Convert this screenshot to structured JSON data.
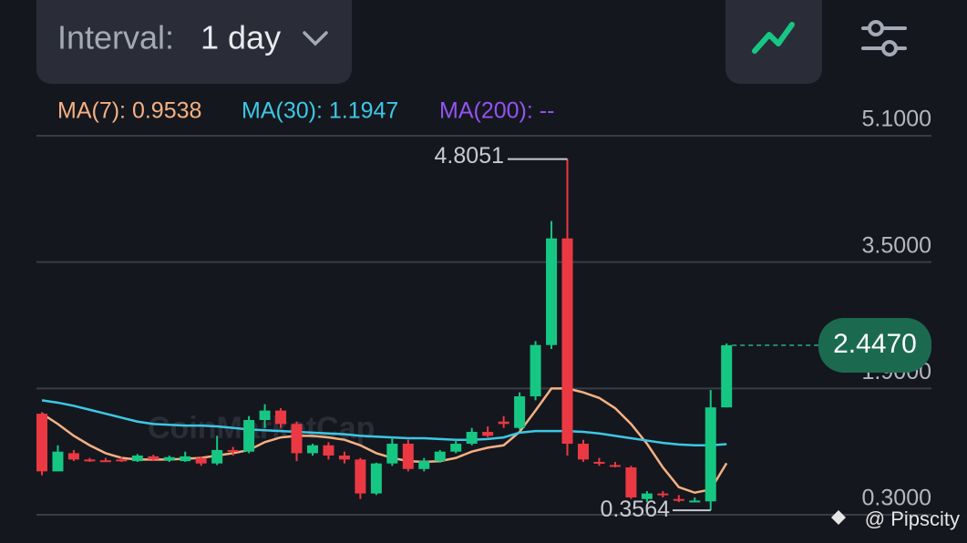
{
  "header": {
    "interval_label": "Interval:",
    "interval_value": "1 day"
  },
  "chart_data": {
    "type": "candlestick",
    "open": [
      1.58,
      0.85,
      1.08,
      1.0,
      0.99,
      1.0,
      0.98,
      1.04,
      0.99,
      0.98,
      1.02,
      0.95,
      1.12,
      1.1,
      1.5,
      1.62,
      1.45,
      1.08,
      1.18,
      1.05,
      1.0,
      0.57,
      0.95,
      1.2,
      0.88,
      0.98,
      1.1,
      1.2,
      1.35,
      1.48,
      1.4,
      1.8,
      2.45,
      3.8,
      1.2,
      0.97,
      0.93,
      0.9,
      0.5,
      0.57,
      0.5,
      0.47,
      0.47,
      1.66
    ],
    "high": [
      1.6,
      1.18,
      1.12,
      1.02,
      1.02,
      1.03,
      1.07,
      1.06,
      1.05,
      1.1,
      1.04,
      1.3,
      1.16,
      1.55,
      1.7,
      1.65,
      1.48,
      1.2,
      1.22,
      1.1,
      1.02,
      0.96,
      1.28,
      1.25,
      1.02,
      1.12,
      1.25,
      1.4,
      1.42,
      1.55,
      1.85,
      2.5,
      4.02,
      4.8051,
      1.25,
      1.02,
      0.97,
      0.92,
      0.6,
      0.6,
      0.55,
      0.52,
      1.88,
      2.47
    ],
    "low": [
      0.8,
      0.85,
      0.98,
      0.97,
      0.97,
      0.97,
      0.97,
      0.98,
      0.97,
      0.97,
      0.92,
      0.93,
      1.05,
      1.08,
      1.4,
      1.4,
      0.98,
      1.05,
      1.0,
      0.95,
      0.5,
      0.55,
      0.92,
      0.85,
      0.85,
      0.96,
      1.08,
      1.18,
      1.28,
      1.4,
      1.38,
      1.75,
      2.4,
      1.05,
      0.97,
      0.92,
      0.9,
      0.5,
      0.46,
      0.52,
      0.46,
      0.46,
      0.3564,
      1.66
    ],
    "close": [
      0.85,
      1.1,
      1.0,
      0.98,
      0.98,
      0.98,
      1.05,
      1.0,
      1.03,
      1.04,
      0.95,
      1.12,
      1.1,
      1.5,
      1.62,
      1.45,
      1.08,
      1.18,
      1.05,
      1.0,
      0.57,
      0.95,
      1.2,
      0.88,
      0.98,
      1.1,
      1.2,
      1.35,
      1.3,
      1.45,
      1.8,
      2.45,
      3.8,
      1.2,
      1.0,
      0.95,
      0.92,
      0.52,
      0.57,
      0.55,
      0.48,
      0.48,
      1.66,
      2.447
    ],
    "up_color": "#16c784",
    "down_color": "#ea3943",
    "series": [
      {
        "name": "MA(7): 0.9538",
        "color": "#f4b183",
        "values": [
          1.58,
          1.45,
          1.3,
          1.18,
          1.08,
          1.02,
          1.0,
          1.0,
          1.0,
          1.01,
          1.02,
          1.05,
          1.08,
          1.12,
          1.22,
          1.28,
          1.3,
          1.3,
          1.28,
          1.25,
          1.18,
          1.08,
          1.02,
          0.98,
          0.97,
          0.98,
          1.02,
          1.1,
          1.15,
          1.18,
          1.35,
          1.62,
          1.9,
          1.9,
          1.85,
          1.78,
          1.65,
          1.45,
          1.2,
          0.9,
          0.65,
          0.58,
          0.62,
          0.9538
        ]
      },
      {
        "name": "MA(30): 1.1947",
        "color": "#3cc8e6",
        "values": [
          1.75,
          1.72,
          1.68,
          1.63,
          1.58,
          1.53,
          1.48,
          1.45,
          1.44,
          1.43,
          1.43,
          1.42,
          1.4,
          1.38,
          1.37,
          1.36,
          1.35,
          1.34,
          1.33,
          1.32,
          1.3,
          1.29,
          1.28,
          1.27,
          1.27,
          1.26,
          1.25,
          1.25,
          1.26,
          1.28,
          1.34,
          1.36,
          1.36,
          1.36,
          1.35,
          1.33,
          1.3,
          1.27,
          1.24,
          1.21,
          1.19,
          1.18,
          1.18,
          1.1947
        ]
      }
    ],
    "legend_extra": {
      "name": "MA(200): --",
      "color": "#9254f0"
    },
    "ylim": [
      0.185,
      5.55
    ],
    "yticks": [
      {
        "value": 5.1,
        "label": "5.1000"
      },
      {
        "value": 3.5,
        "label": "3.5000"
      },
      {
        "value": 1.9,
        "label": "1.9000"
      },
      {
        "value": 0.3,
        "label": "0.3000"
      }
    ],
    "grid": true,
    "annotations": [
      {
        "value": 4.8051,
        "label": "4.8051"
      },
      {
        "value": 0.3564,
        "label": "0.3564"
      }
    ],
    "last_price": {
      "value": 2.447,
      "label": "2.4470"
    }
  },
  "watermark": "CoinMarketCap",
  "credit": "@ Pipscity"
}
